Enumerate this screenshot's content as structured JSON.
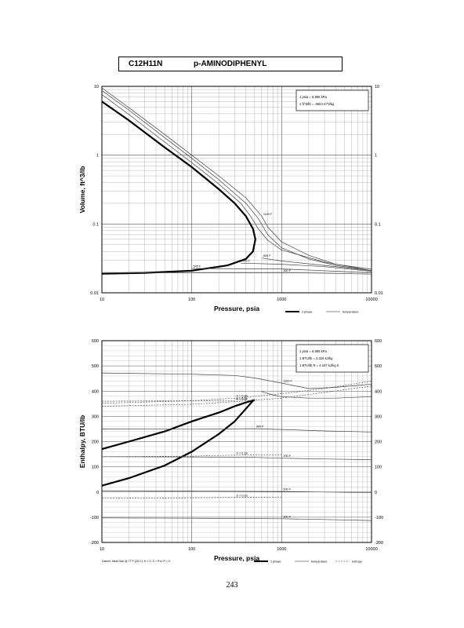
{
  "header": {
    "formula": "C12H11N",
    "name": "p-AMINODIPHENYL"
  },
  "page_number": "243",
  "chart_data": [
    {
      "type": "line",
      "xscale": "log",
      "yscale": "log",
      "xlabel": "Pressure,  psia",
      "ylabel": "Volume, ft^3/lb",
      "xlim": [
        10,
        10000
      ],
      "ylim": [
        0.01,
        10
      ],
      "x_ticks": [
        "10",
        "100",
        "1000",
        "10000"
      ],
      "y_ticks_left": [
        "10",
        "1",
        "0.1",
        "0.01"
      ],
      "y_ticks_right": [
        "10",
        "1",
        "0.1",
        "0.01"
      ],
      "grid": true,
      "notes": [
        "1 psia  =  6.895 kPa",
        "1 ft^3/lb  =  .0624 m^3/kg"
      ],
      "series": [
        {
          "name": "2 phase",
          "style": "thick",
          "points": [
            [
              10,
              6.0
            ],
            [
              20,
              3.2
            ],
            [
              50,
              1.3
            ],
            [
              100,
              0.67
            ],
            [
              200,
              0.32
            ],
            [
              300,
              0.2
            ],
            [
              400,
              0.13
            ],
            [
              480,
              0.085
            ],
            [
              510,
              0.06
            ],
            [
              480,
              0.04
            ],
            [
              400,
              0.031
            ],
            [
              250,
              0.025
            ],
            [
              100,
              0.021
            ],
            [
              30,
              0.0195
            ],
            [
              10,
              0.019
            ]
          ]
        },
        {
          "label": "1100 F",
          "points": [
            [
              10,
              9.5
            ],
            [
              20,
              4.9
            ],
            [
              50,
              2.0
            ],
            [
              100,
              1.0
            ],
            [
              200,
              0.5
            ],
            [
              400,
              0.24
            ],
            [
              600,
              0.13
            ],
            [
              700,
              0.09
            ],
            [
              1000,
              0.055
            ],
            [
              2000,
              0.035
            ],
            [
              4000,
              0.026
            ],
            [
              10000,
              0.022
            ]
          ]
        },
        {
          "label": "",
          "points": [
            [
              10,
              8.7
            ],
            [
              20,
              4.5
            ],
            [
              50,
              1.8
            ],
            [
              100,
              0.9
            ],
            [
              200,
              0.44
            ],
            [
              400,
              0.2
            ],
            [
              550,
              0.12
            ],
            [
              700,
              0.07
            ],
            [
              1000,
              0.045
            ],
            [
              2000,
              0.031
            ],
            [
              4000,
              0.025
            ],
            [
              10000,
              0.021
            ]
          ]
        },
        {
          "label": "",
          "points": [
            [
              10,
              7.6
            ],
            [
              20,
              3.9
            ],
            [
              50,
              1.55
            ],
            [
              100,
              0.78
            ],
            [
              200,
              0.38
            ],
            [
              350,
              0.2
            ],
            [
              450,
              0.13
            ],
            [
              550,
              0.085
            ],
            [
              700,
              0.058
            ],
            [
              1000,
              0.042
            ],
            [
              3000,
              0.028
            ],
            [
              10000,
              0.021
            ]
          ]
        },
        {
          "label": "800 F",
          "points": [
            [
              600,
              0.032
            ],
            [
              1000,
              0.029
            ],
            [
              3000,
              0.025
            ],
            [
              10000,
              0.021
            ]
          ]
        },
        {
          "label": "700 F",
          "points": [
            [
              350,
              0.027
            ],
            [
              1000,
              0.026
            ],
            [
              3000,
              0.024
            ],
            [
              10000,
              0.0205
            ]
          ]
        },
        {
          "label": "500 F",
          "points": [
            [
              100,
              0.0225
            ],
            [
              1000,
              0.0222
            ],
            [
              3000,
              0.021
            ],
            [
              10000,
              0.0195
            ]
          ]
        },
        {
          "label": "300 F",
          "points": [
            [
              10,
              0.0195
            ],
            [
              100,
              0.0196
            ],
            [
              1000,
              0.0196
            ],
            [
              3000,
              0.0193
            ],
            [
              10000,
              0.0187
            ]
          ]
        }
      ],
      "legend": [
        "2 phase",
        "temperature"
      ]
    },
    {
      "type": "line",
      "xscale": "log",
      "yscale": "linear",
      "xlabel": "Pressure,  psia",
      "ylabel": "Enthalpy, BTU/lb",
      "xlim": [
        10,
        10000
      ],
      "ylim": [
        -200,
        600
      ],
      "x_ticks": [
        "10",
        "100",
        "1000",
        "10000"
      ],
      "y_ticks_left": [
        "600",
        "500",
        "400",
        "300",
        "200",
        "100",
        "0",
        "-100",
        "-200"
      ],
      "y_ticks_right": [
        "600",
        "500",
        "400",
        "300",
        "200",
        "100",
        "0",
        "-100",
        "-200"
      ],
      "grid": true,
      "notes": [
        "1 psia  =  6.895 kPa",
        "1 BTU/lb  =  2.326 kJ/kg",
        "1 BTU/lb R  =  4.187 kJ/kg K"
      ],
      "series": [
        {
          "name": "2 phase",
          "style": "thick",
          "points": [
            [
              10,
              25
            ],
            [
              20,
              55
            ],
            [
              50,
              105
            ],
            [
              100,
              160
            ],
            [
              200,
              230
            ],
            [
              300,
              280
            ],
            [
              400,
              330
            ],
            [
              480,
              362
            ],
            [
              500,
              365
            ],
            [
              400,
              355
            ],
            [
              300,
              340
            ],
            [
              200,
              315
            ],
            [
              100,
              280
            ],
            [
              50,
              240
            ],
            [
              20,
              200
            ],
            [
              10,
              170
            ]
          ]
        },
        {
          "label": "1100 F",
          "points": [
            [
              10,
              472
            ],
            [
              100,
              467
            ],
            [
              300,
              462
            ],
            [
              500,
              452
            ],
            [
              1000,
              432
            ],
            [
              2000,
              410
            ],
            [
              4000,
              415
            ],
            [
              10000,
              428
            ]
          ]
        },
        {
          "label": "",
          "points": [
            [
              600,
              398
            ],
            [
              800,
              385
            ],
            [
              1000,
              378
            ],
            [
              2000,
              372
            ],
            [
              4000,
              372
            ],
            [
              10000,
              378
            ]
          ]
        },
        {
          "label": "900 F",
          "points": [
            [
              10,
              250
            ],
            [
              100,
              249
            ],
            [
              300,
              250
            ],
            [
              500,
              251
            ],
            [
              1000,
              248
            ],
            [
              3000,
              242
            ],
            [
              10000,
              238
            ]
          ]
        },
        {
          "label": "700 F",
          "points": [
            [
              10,
              140
            ],
            [
              100,
              139
            ],
            [
              500,
              137
            ],
            [
              1000,
              134
            ],
            [
              3000,
              131
            ],
            [
              10000,
              128
            ]
          ]
        },
        {
          "label": "500 F",
          "points": [
            [
              10,
              5
            ],
            [
              100,
              4
            ],
            [
              1000,
              2
            ],
            [
              3000,
              0
            ],
            [
              10000,
              -3
            ]
          ]
        },
        {
          "label": "300 F",
          "points": [
            [
              10,
              -103
            ],
            [
              100,
              -104
            ],
            [
              1000,
              -106
            ],
            [
              3000,
              -109
            ],
            [
              10000,
              -113
            ]
          ]
        }
      ],
      "entropy_lines": [
        {
          "label": "S = 0.38",
          "points": [
            [
              10,
              352
            ],
            [
              100,
              362
            ],
            [
              300,
              372
            ],
            [
              1000,
              390
            ],
            [
              3000,
              410
            ],
            [
              10000,
              440
            ]
          ]
        },
        {
          "label": "S = 0.37",
          "points": [
            [
              10,
              340
            ],
            [
              100,
              348
            ],
            [
              300,
              358
            ],
            [
              1000,
              372
            ],
            [
              3000,
              395
            ],
            [
              10000,
              420
            ]
          ]
        },
        {
          "label": "S = 0.35",
          "points": [
            [
              10,
              360
            ],
            [
              100,
              362
            ],
            [
              300,
              362
            ]
          ]
        },
        {
          "label": "S = 0.18",
          "points": [
            [
              10,
              140
            ],
            [
              100,
              142
            ],
            [
              300,
              146
            ],
            [
              1000,
              148
            ]
          ]
        },
        {
          "label": "S = 0.03",
          "points": [
            [
              10,
              -25
            ],
            [
              100,
              -23
            ],
            [
              300,
              -22
            ],
            [
              1000,
              -20
            ]
          ]
        }
      ],
      "legend": [
        "2 phase",
        "temperature",
        "entropy"
      ],
      "footer": "Datum: Ideal Gas @ 77 F (25 C),  H = 0,  S = R ln P = 0"
    }
  ]
}
